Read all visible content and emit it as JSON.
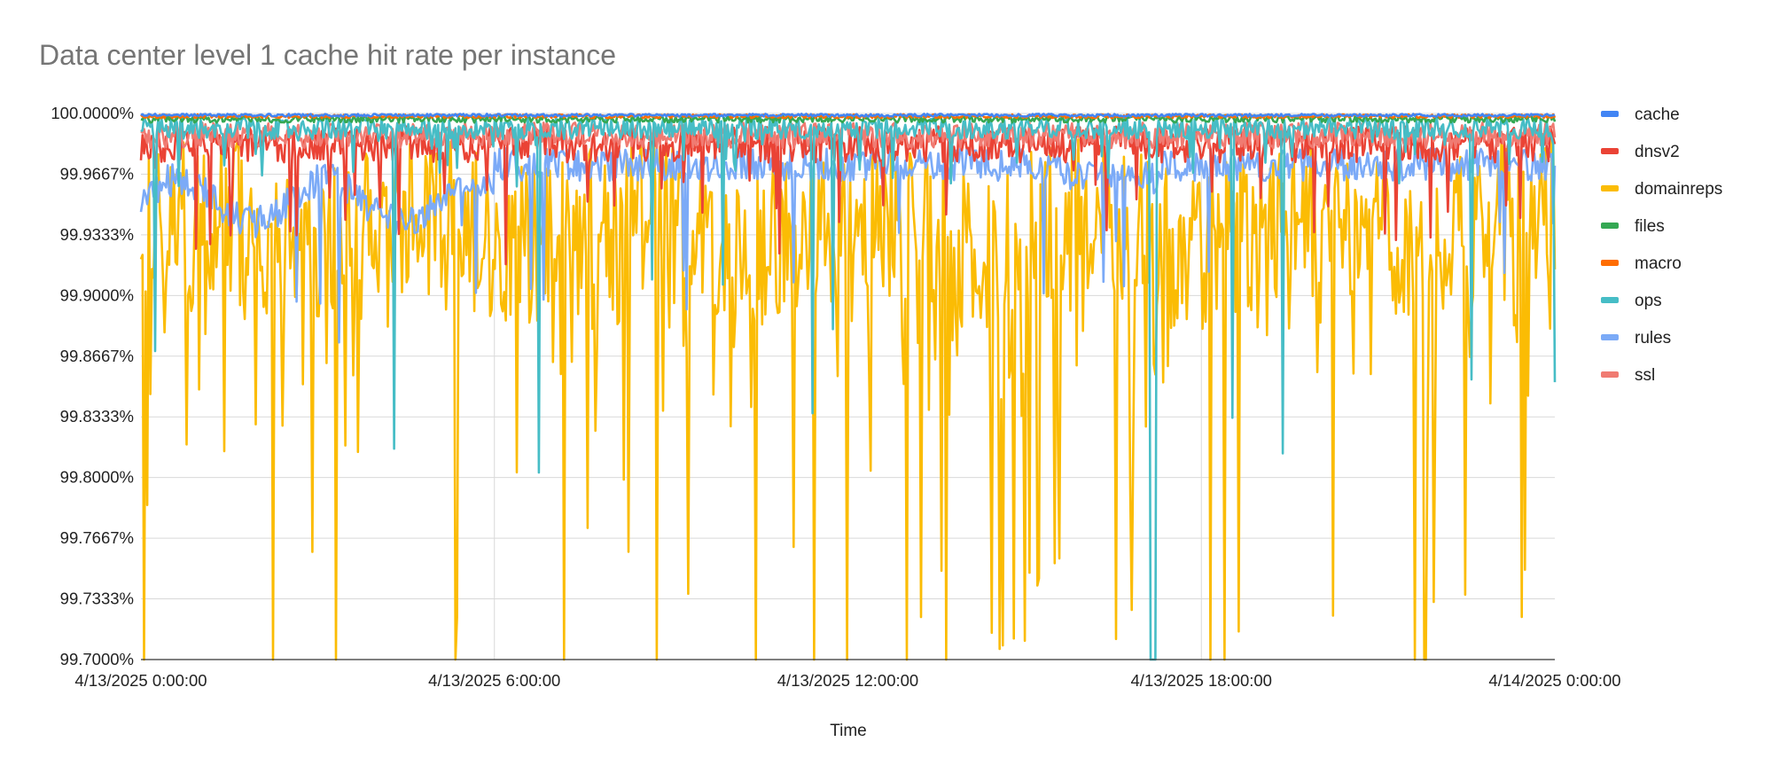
{
  "chart_data": {
    "type": "line",
    "title": "Data center level 1 cache hit rate per instance",
    "xlabel": "Time",
    "ylabel": "",
    "x_range": [
      "4/13/2025 0:00:00",
      "4/14/2025 0:00:00"
    ],
    "x_ticks": [
      "4/13/2025 0:00:00",
      "4/13/2025 6:00:00",
      "4/13/2025 12:00:00",
      "4/13/2025 18:00:00",
      "4/14/2025 0:00:00"
    ],
    "ylim": [
      99.7,
      100.0
    ],
    "y_ticks": [
      "99.7000%",
      "99.7333%",
      "99.7667%",
      "99.8000%",
      "99.8333%",
      "99.8667%",
      "99.9000%",
      "99.9333%",
      "99.9667%",
      "100.0000%"
    ],
    "grid": true,
    "legend_position": "right",
    "series": [
      {
        "name": "cache",
        "color": "#4285f4"
      },
      {
        "name": "dnsv2",
        "color": "#ea4335"
      },
      {
        "name": "domainreps",
        "color": "#fbbc04"
      },
      {
        "name": "files",
        "color": "#34a853"
      },
      {
        "name": "macro",
        "color": "#ff6d01"
      },
      {
        "name": "ops",
        "color": "#46bdc6"
      },
      {
        "name": "rules",
        "color": "#7baaf7"
      },
      {
        "name": "ssl",
        "color": "#f07b72"
      }
    ]
  }
}
